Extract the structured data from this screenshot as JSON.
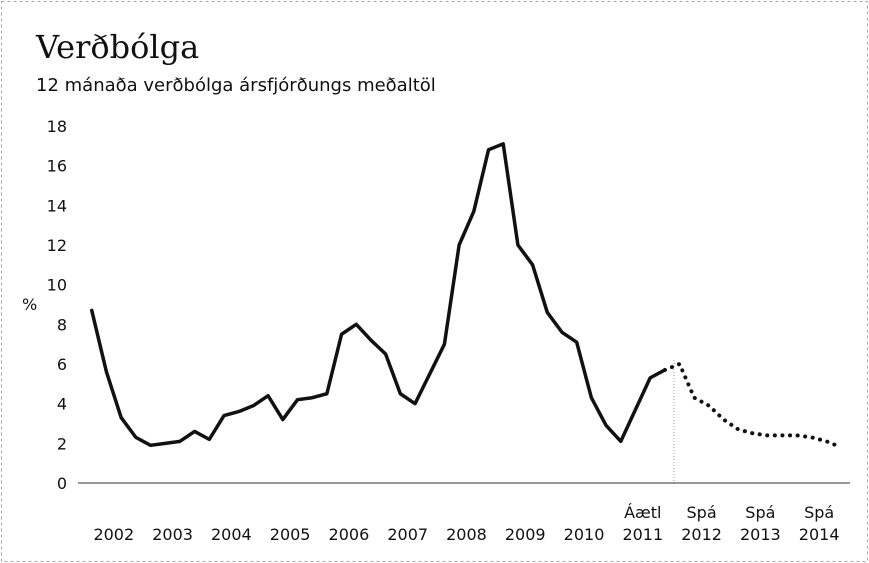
{
  "chart_data": {
    "type": "line",
    "title": "Verðbólga",
    "subtitle": "12 mánaða verðbólga  ársfjórðungs meðaltöl",
    "y_label": "%",
    "xlim": [
      2001.8,
      2014.9
    ],
    "ylim": [
      0,
      18
    ],
    "yticks": [
      0,
      2,
      4,
      6,
      8,
      10,
      12,
      14,
      16,
      18
    ],
    "xticks": [
      {
        "value": 2002.375,
        "label": "2002"
      },
      {
        "value": 2003.375,
        "label": "2003"
      },
      {
        "value": 2004.375,
        "label": "2004"
      },
      {
        "value": 2005.375,
        "label": "2005"
      },
      {
        "value": 2006.375,
        "label": "2006"
      },
      {
        "value": 2007.375,
        "label": "2007"
      },
      {
        "value": 2008.375,
        "label": "2008"
      },
      {
        "value": 2009.375,
        "label": "2009"
      },
      {
        "value": 2010.375,
        "label": "2010"
      },
      {
        "value": 2011.375,
        "label": "Áætl 2011"
      },
      {
        "value": 2012.375,
        "label": "Spá 2012"
      },
      {
        "value": 2013.375,
        "label": "Spá 2013"
      },
      {
        "value": 2014.375,
        "label": "Spá 2014"
      }
    ],
    "series": [
      {
        "color": "#111111",
        "style": "solid",
        "x": [
          2002,
          2002.25,
          2002.5,
          2002.75,
          2003,
          2003.25,
          2003.5,
          2003.75,
          2004,
          2004.25,
          2004.5,
          2004.75,
          2005,
          2005.25,
          2005.5,
          2005.75,
          2006,
          2006.25,
          2006.5,
          2006.75,
          2007,
          2007.25,
          2007.5,
          2007.75,
          2008,
          2008.25,
          2008.5,
          2008.75,
          2009,
          2009.25,
          2009.5,
          2009.75,
          2010,
          2010.25,
          2010.5,
          2010.75,
          2011,
          2011.25,
          2011.5,
          2011.75
        ],
        "values": [
          8.7,
          5.6,
          3.3,
          2.3,
          1.9,
          2.0,
          2.1,
          2.6,
          2.2,
          3.4,
          3.6,
          3.9,
          4.4,
          3.2,
          4.2,
          4.3,
          4.5,
          7.5,
          8.0,
          7.2,
          6.5,
          4.5,
          4.0,
          5.5,
          7.0,
          12.0,
          13.7,
          16.8,
          17.1,
          12.0,
          11.0,
          8.6,
          7.6,
          7.1,
          4.3,
          2.9,
          2.1,
          3.7,
          5.3,
          5.7
        ]
      },
      {
        "color": "#111111",
        "style": "dotted",
        "x": [
          2011.75,
          2012,
          2012.25,
          2012.5,
          2012.75,
          2013,
          2013.25,
          2013.5,
          2013.75,
          2014,
          2014.25,
          2014.5,
          2014.75
        ],
        "values": [
          5.7,
          6.0,
          4.3,
          3.9,
          3.2,
          2.7,
          2.5,
          2.4,
          2.4,
          2.4,
          2.3,
          2.1,
          1.8
        ]
      }
    ]
  }
}
